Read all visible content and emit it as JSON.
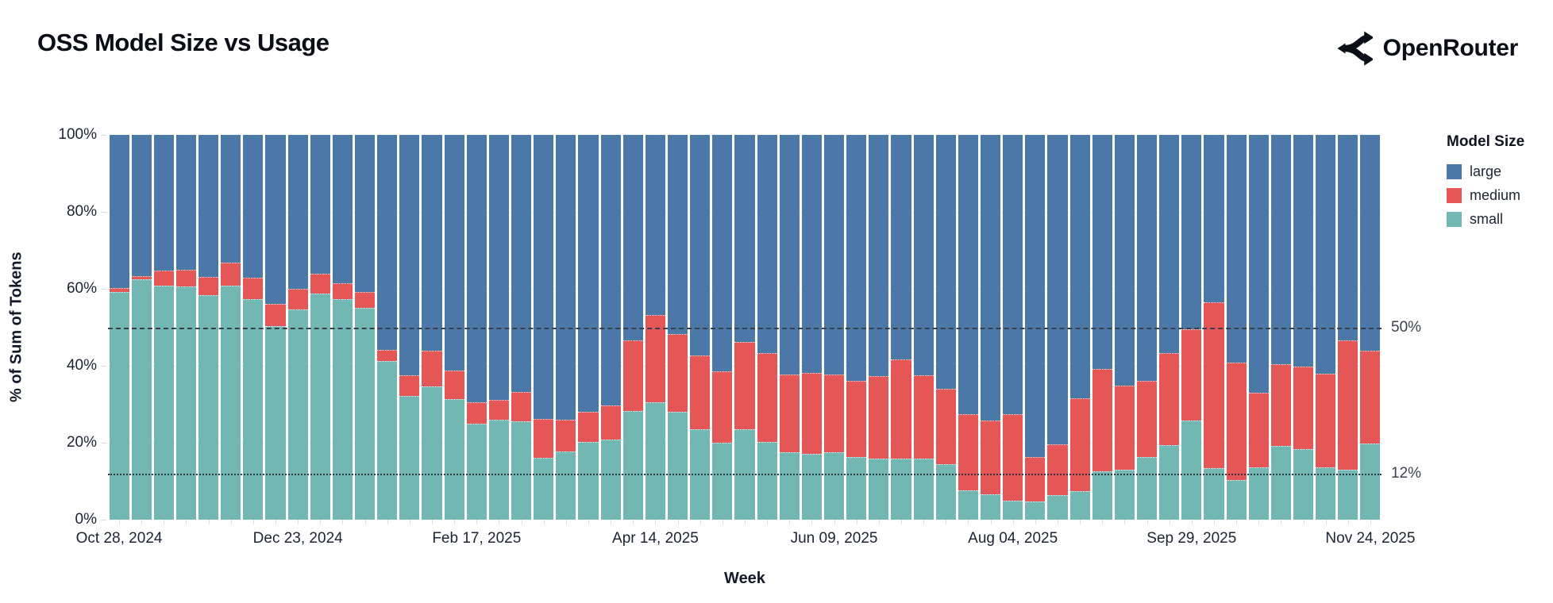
{
  "header": {
    "title": "OSS Model Size vs Usage",
    "brand": "OpenRouter"
  },
  "legend": {
    "title": "Model Size",
    "items": [
      {
        "label": "large",
        "color": "#4c78a8"
      },
      {
        "label": "medium",
        "color": "#e45756"
      },
      {
        "label": "small",
        "color": "#72b7b2"
      }
    ]
  },
  "chart_data": {
    "type": "bar",
    "stacked": true,
    "title": "OSS Model Size vs Usage",
    "xlabel": "Week",
    "ylabel": "% of Sum of Tokens",
    "ylim": [
      0,
      100
    ],
    "grid": "horizontal",
    "legend_position": "right",
    "y_ticks": [
      {
        "value": 100,
        "label": "100%"
      },
      {
        "value": 80,
        "label": "80%"
      },
      {
        "value": 60,
        "label": "60%"
      },
      {
        "value": 40,
        "label": "40%"
      },
      {
        "value": 20,
        "label": "20%"
      },
      {
        "value": 0,
        "label": "0%"
      }
    ],
    "x_ticks": [
      {
        "index": 0,
        "label": "Oct 28, 2024"
      },
      {
        "index": 8,
        "label": "Dec 23, 2024"
      },
      {
        "index": 16,
        "label": "Feb 17, 2025"
      },
      {
        "index": 24,
        "label": "Apr 14, 2025"
      },
      {
        "index": 32,
        "label": "Jun 09, 2025"
      },
      {
        "index": 40,
        "label": "Aug 04, 2025"
      },
      {
        "index": 48,
        "label": "Sep 29, 2025"
      },
      {
        "index": 56,
        "label": "Nov 24, 2025"
      }
    ],
    "reference_lines": [
      {
        "value": 50,
        "style": "dashed",
        "label": "50%"
      },
      {
        "value": 12,
        "style": "dotted",
        "label": "12%"
      }
    ],
    "categories": [
      "2024-10-28",
      "2024-11-04",
      "2024-11-11",
      "2024-11-18",
      "2024-11-25",
      "2024-12-02",
      "2024-12-09",
      "2024-12-16",
      "2024-12-23",
      "2024-12-30",
      "2025-01-06",
      "2025-01-13",
      "2025-01-20",
      "2025-01-27",
      "2025-02-03",
      "2025-02-10",
      "2025-02-17",
      "2025-02-24",
      "2025-03-03",
      "2025-03-10",
      "2025-03-17",
      "2025-03-24",
      "2025-03-31",
      "2025-04-07",
      "2025-04-14",
      "2025-04-21",
      "2025-04-28",
      "2025-05-05",
      "2025-05-12",
      "2025-05-19",
      "2025-05-26",
      "2025-06-02",
      "2025-06-09",
      "2025-06-16",
      "2025-06-23",
      "2025-06-30",
      "2025-07-07",
      "2025-07-14",
      "2025-07-21",
      "2025-07-28",
      "2025-08-04",
      "2025-08-11",
      "2025-08-18",
      "2025-08-25",
      "2025-09-01",
      "2025-09-08",
      "2025-09-15",
      "2025-09-22",
      "2025-09-29",
      "2025-10-06",
      "2025-10-13",
      "2025-10-20",
      "2025-10-27",
      "2025-11-03",
      "2025-11-10",
      "2025-11-17",
      "2025-11-24"
    ],
    "series": [
      {
        "name": "small",
        "color": "#72b7b2",
        "values": [
          59.2,
          62.4,
          60.8,
          60.6,
          58.4,
          60.8,
          57.3,
          50.3,
          54.6,
          58.8,
          57.4,
          55.0,
          41.3,
          32.2,
          34.6,
          31.3,
          25.0,
          26.0,
          25.5,
          16.1,
          17.8,
          20.2,
          20.9,
          28.2,
          30.6,
          28.1,
          23.6,
          20.0,
          23.6,
          20.2,
          17.5,
          17.1,
          17.5,
          16.2,
          15.9,
          15.9,
          15.9,
          14.4,
          7.7,
          6.5,
          4.9,
          4.8,
          6.3,
          7.5,
          12.5,
          12.9,
          16.3,
          19.3,
          25.7,
          13.4,
          10.4,
          13.7,
          19.2,
          18.4,
          13.7,
          12.9,
          19.7
        ]
      },
      {
        "name": "medium",
        "color": "#e45756",
        "values": [
          1.0,
          1.0,
          3.9,
          4.4,
          4.8,
          6.0,
          5.6,
          5.8,
          5.5,
          5.1,
          4.0,
          4.1,
          2.8,
          5.4,
          9.3,
          7.4,
          5.5,
          5.2,
          7.7,
          10.1,
          8.1,
          7.9,
          8.7,
          18.4,
          22.7,
          20.2,
          19.0,
          18.5,
          22.6,
          23.0,
          20.2,
          21.0,
          20.3,
          19.9,
          21.4,
          25.7,
          21.6,
          19.6,
          19.7,
          19.2,
          22.5,
          11.5,
          13.2,
          24.0,
          26.7,
          22.0,
          19.7,
          24.1,
          23.8,
          43.1,
          30.4,
          19.3,
          21.2,
          21.5,
          24.3,
          33.7,
          24.3
        ]
      },
      {
        "name": "large",
        "color": "#4c78a8",
        "values": [
          39.8,
          36.6,
          35.3,
          35.0,
          36.8,
          33.2,
          37.1,
          43.9,
          39.9,
          36.1,
          38.6,
          40.9,
          55.9,
          62.4,
          56.1,
          61.3,
          69.5,
          68.8,
          66.8,
          73.8,
          74.1,
          71.9,
          70.4,
          53.4,
          46.7,
          51.7,
          57.4,
          61.5,
          53.8,
          56.8,
          62.3,
          61.9,
          62.2,
          63.9,
          62.7,
          58.4,
          62.5,
          66.0,
          72.6,
          74.3,
          72.6,
          83.7,
          80.5,
          68.5,
          60.8,
          65.1,
          64.0,
          56.6,
          50.5,
          43.5,
          59.2,
          67.0,
          59.6,
          60.1,
          62.0,
          53.4,
          56.0
        ]
      }
    ]
  }
}
